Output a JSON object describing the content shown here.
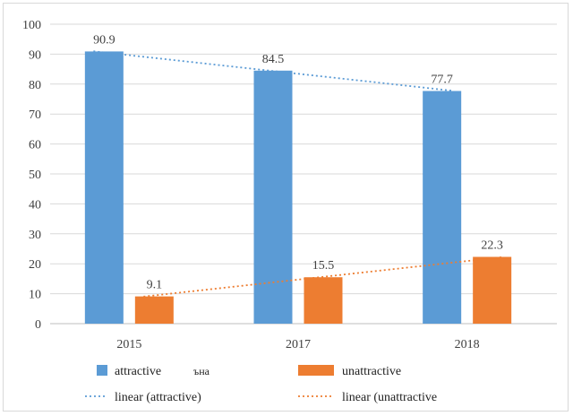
{
  "chart_data": {
    "type": "bar",
    "categories": [
      "2015",
      "2017",
      "2018"
    ],
    "series": [
      {
        "name": "attractive",
        "values": [
          90.9,
          84.5,
          77.7
        ],
        "color": "#5b9bd5"
      },
      {
        "name": "unattractive",
        "values": [
          9.1,
          15.5,
          22.3
        ],
        "color": "#ed7d31"
      }
    ],
    "trendlines": [
      {
        "name": "linear (attractive)",
        "of_series": "attractive",
        "color": "#5b9bd5",
        "style": "dotted"
      },
      {
        "name": "linear (unattractive",
        "of_series": "unattractive",
        "color": "#ed7d31",
        "style": "dotted"
      }
    ],
    "legend_extra_text": "ъна",
    "title": "",
    "xlabel": "",
    "ylabel": "",
    "ylim": [
      0,
      100
    ],
    "yticks": [
      "0",
      "10",
      "20",
      "30",
      "40",
      "50",
      "60",
      "70",
      "80",
      "90",
      "100"
    ],
    "grid": true,
    "legend_position": "bottom"
  }
}
